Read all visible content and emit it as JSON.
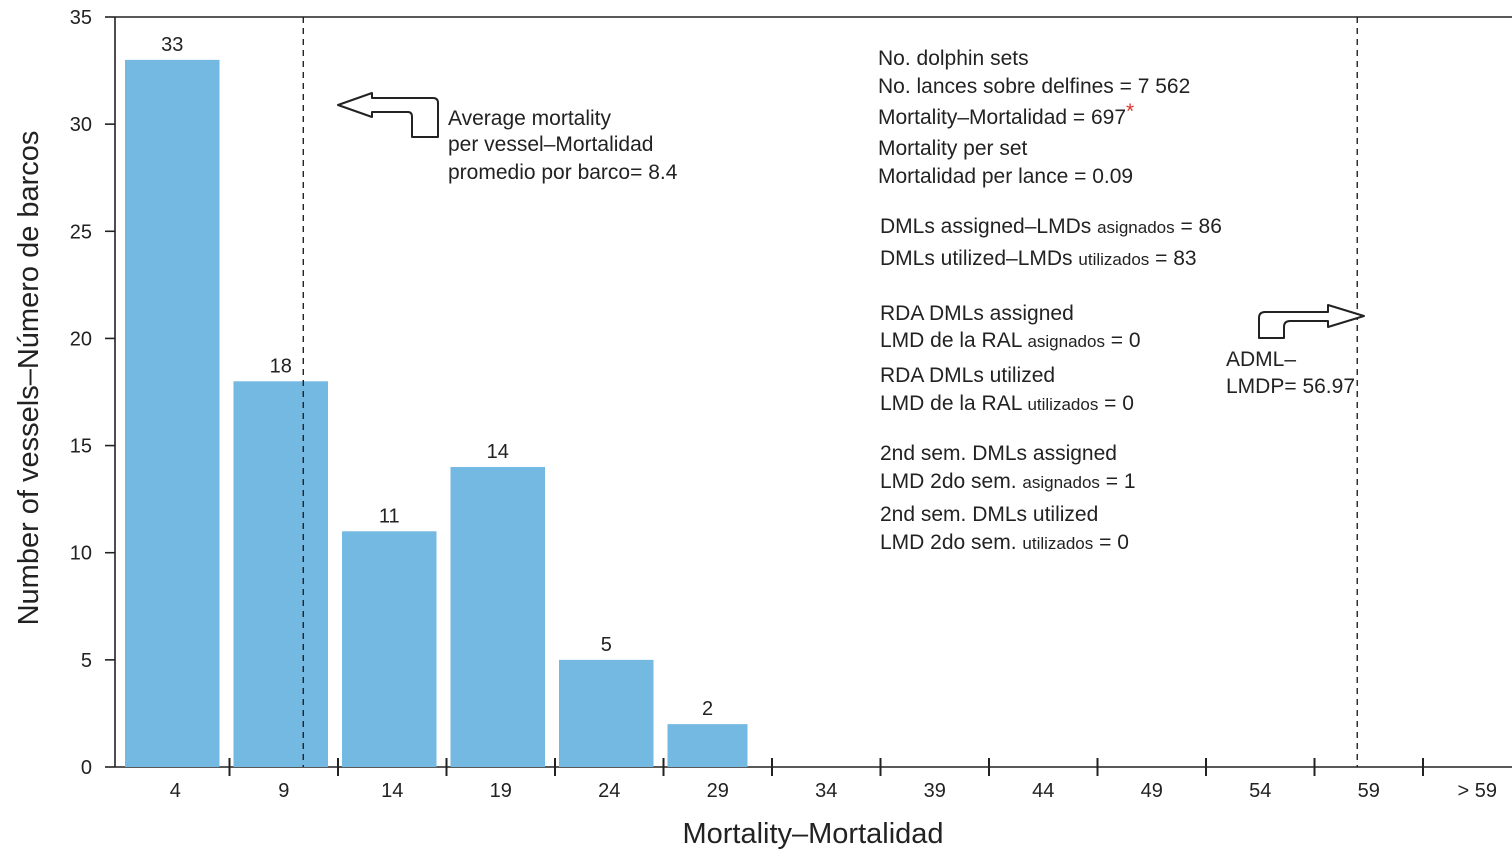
{
  "chart_data": {
    "type": "bar",
    "categories": [
      "4",
      "9",
      "14",
      "19",
      "24",
      "29",
      "34",
      "39",
      "44",
      "49",
      "54",
      "59",
      "> 59"
    ],
    "values": [
      33,
      18,
      11,
      14,
      5,
      2,
      0,
      0,
      0,
      0,
      0,
      0,
      0
    ],
    "bar_labels": [
      "33",
      "18",
      "11",
      "14",
      "5",
      "2",
      "",
      "",
      "",
      "",
      "",
      "",
      ""
    ],
    "xlabel": "Mortality–Mortalidad",
    "ylabel": "Number of vessels–Número de barcos",
    "ylim": [
      0,
      35
    ],
    "yticks": [
      0,
      5,
      10,
      15,
      20,
      25,
      30,
      35
    ],
    "grid": false,
    "legend": "none",
    "bar_color": "#74b9e2",
    "reference_lines": [
      {
        "name": "average-mortality",
        "x": 8.4
      },
      {
        "name": "adml",
        "x": 56.97
      }
    ],
    "annotations": {
      "average": [
        "Average mortality",
        "per vessel–Mortalidad",
        "promedio por barco= 8.4"
      ],
      "adml": [
        "ADML–",
        "LMDP= 56.97"
      ],
      "stats": [
        {
          "main": "No. dolphin sets"
        },
        {
          "main": "No. lances sobre delfines = 7 562"
        },
        {
          "main": "Mortality–Mortalidad = 697",
          "star": "*"
        },
        {
          "main": "Mortality per set"
        },
        {
          "main": "Mortalidad per lance = 0.09"
        },
        {
          "main": "DMLs assigned–LMDs ",
          "small": "asignados",
          "tail": " = 86"
        },
        {
          "main": "DMLs utilized–LMDs ",
          "small": "utilizados",
          "tail": " =  83"
        },
        {
          "main": "RDA DMLs assigned"
        },
        {
          "main": "LMD de la RAL ",
          "small": "asignados",
          "tail": "  = 0"
        },
        {
          "main": "RDA DMLs utilized"
        },
        {
          "main": "LMD de la RAL ",
          "small": "utilizados",
          "tail": " = 0"
        },
        {
          "main": "2nd sem. DMLs assigned"
        },
        {
          "main": "LMD 2do sem. ",
          "small": "asignados",
          "tail": " = 1"
        },
        {
          "main": "2nd sem. DMLs utilized"
        },
        {
          "main": "LMD 2do sem. ",
          "small": "utilizados",
          "tail": " =  0"
        }
      ]
    }
  }
}
